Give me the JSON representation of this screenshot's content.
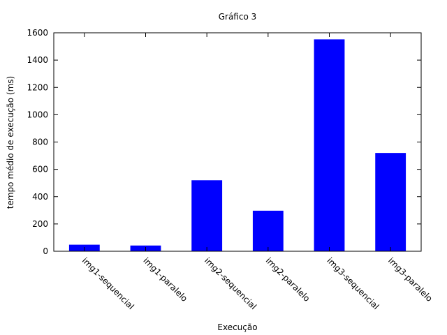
{
  "chart_data": {
    "type": "bar",
    "title": "Gráfico 3",
    "xlabel": "Execução",
    "ylabel": "tempo médio de execução (ms)",
    "categories": [
      "img1-sequencial",
      "img1-paralelo",
      "img2-sequencial",
      "img2-paralelo",
      "img3-sequencial",
      "img3-paralelo"
    ],
    "values": [
      48,
      42,
      520,
      297,
      1552,
      720
    ],
    "ylim": [
      0,
      1600
    ],
    "yticks": [
      "0",
      "200",
      "400",
      "600",
      "800",
      "1000",
      "1200",
      "1400",
      "1600"
    ],
    "bar_color": "#0000ff",
    "grid": false,
    "legend": "none"
  }
}
